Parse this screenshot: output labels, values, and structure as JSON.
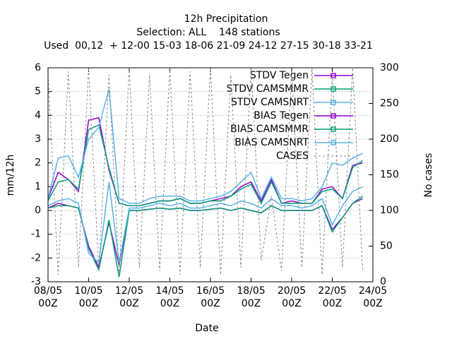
{
  "chart_data": {
    "type": "line",
    "title": "12h Precipitation",
    "subtitle": "Selection: ALL    148 stations",
    "note": "Used  00,12  + 12-00 15-03 18-06 21-09 24-12 27-15 30-18 33-21",
    "xlabel": "Date",
    "ylabel": "mm/12h",
    "y2label": "No cases",
    "x": [
      8.0,
      8.5,
      9.0,
      9.5,
      10.0,
      10.5,
      11.0,
      11.5,
      12.0,
      12.5,
      13.0,
      13.5,
      14.0,
      14.5,
      15.0,
      15.5,
      16.0,
      16.5,
      17.0,
      17.5,
      18.0,
      18.5,
      19.0,
      19.5,
      20.0,
      20.5,
      21.0,
      21.5,
      22.0,
      22.5,
      23.0,
      23.5
    ],
    "xlim": [
      8,
      24
    ],
    "xticks": [
      {
        "value": 8,
        "label": [
          "08/05",
          "00Z"
        ]
      },
      {
        "value": 10,
        "label": [
          "10/05",
          "00Z"
        ]
      },
      {
        "value": 12,
        "label": [
          "12/05",
          "00Z"
        ]
      },
      {
        "value": 14,
        "label": [
          "14/05",
          "00Z"
        ]
      },
      {
        "value": 16,
        "label": [
          "16/05",
          "00Z"
        ]
      },
      {
        "value": 18,
        "label": [
          "18/05",
          "00Z"
        ]
      },
      {
        "value": 20,
        "label": [
          "20/05",
          "00Z"
        ]
      },
      {
        "value": 22,
        "label": [
          "22/05",
          "00Z"
        ]
      },
      {
        "value": 24,
        "label": [
          "24/05",
          "00Z"
        ]
      }
    ],
    "ylim": [
      -3,
      6
    ],
    "yticks": [
      -3,
      -2,
      -1,
      0,
      1,
      2,
      3,
      4,
      5,
      6
    ],
    "y2lim": [
      0,
      300
    ],
    "y2ticks": [
      0,
      50,
      100,
      150,
      200,
      250,
      300
    ],
    "grid": true,
    "legend": "top-right",
    "series": [
      {
        "name": "STDV Tegen",
        "color": "#9400d3",
        "values": [
          0.5,
          1.6,
          1.3,
          0.8,
          3.8,
          3.9,
          1.7,
          0.3,
          0.2,
          0.2,
          0.3,
          0.4,
          0.4,
          0.5,
          0.3,
          0.3,
          0.4,
          0.5,
          0.6,
          1.0,
          1.2,
          0.4,
          1.3,
          0.3,
          0.4,
          0.3,
          0.3,
          0.9,
          1.0,
          0.5,
          1.9,
          2.0
        ]
      },
      {
        "name": "STDV CAMSMMR",
        "color": "#009e73",
        "values": [
          0.4,
          1.2,
          1.3,
          0.9,
          3.4,
          3.6,
          1.8,
          0.3,
          0.2,
          0.2,
          0.3,
          0.4,
          0.4,
          0.5,
          0.3,
          0.3,
          0.4,
          0.4,
          0.6,
          0.9,
          1.1,
          0.3,
          1.2,
          0.3,
          0.3,
          0.3,
          0.3,
          0.8,
          0.9,
          0.5,
          1.8,
          2.1
        ]
      },
      {
        "name": "STDV CAMSNRT",
        "color": "#56b4e9",
        "values": [
          0.5,
          2.2,
          2.3,
          1.4,
          3.0,
          3.5,
          5.1,
          0.5,
          0.3,
          0.3,
          0.5,
          0.6,
          0.6,
          0.6,
          0.4,
          0.4,
          0.5,
          0.6,
          0.8,
          1.2,
          1.6,
          0.5,
          1.4,
          0.5,
          0.5,
          0.4,
          0.5,
          1.0,
          2.0,
          1.9,
          2.2,
          2.4
        ]
      },
      {
        "name": "BIAS Tegen",
        "color": "#9400d3",
        "values": [
          0.1,
          0.3,
          0.2,
          0.1,
          -1.5,
          -2.4,
          -0.5,
          -2.3,
          0.0,
          0.0,
          0.05,
          0.1,
          0.05,
          0.1,
          0.0,
          0.0,
          0.05,
          0.1,
          0.0,
          0.1,
          0.0,
          -0.1,
          0.2,
          0.0,
          0.0,
          0.0,
          0.0,
          0.2,
          -0.8,
          -0.3,
          0.3,
          0.5
        ]
      },
      {
        "name": "BIAS CAMSMMR",
        "color": "#009e73",
        "values": [
          0.1,
          0.2,
          0.2,
          0.1,
          -1.6,
          -2.5,
          -0.4,
          -2.8,
          0.0,
          0.0,
          0.05,
          0.1,
          0.05,
          0.1,
          0.0,
          0.0,
          0.05,
          0.1,
          0.0,
          0.1,
          0.0,
          -0.1,
          0.2,
          0.0,
          0.0,
          0.0,
          0.0,
          0.2,
          -0.9,
          -0.3,
          0.3,
          0.6
        ]
      },
      {
        "name": "BIAS CAMSNRT",
        "color": "#56b4e9",
        "values": [
          0.2,
          0.4,
          0.5,
          0.3,
          -1.8,
          -2.2,
          1.2,
          -2.2,
          0.1,
          0.1,
          0.2,
          0.3,
          0.2,
          0.3,
          0.1,
          0.1,
          0.2,
          0.3,
          0.2,
          0.4,
          0.3,
          0.1,
          0.5,
          0.2,
          0.2,
          0.1,
          0.2,
          0.5,
          -0.6,
          0.2,
          0.8,
          1.0
        ]
      },
      {
        "name": "CASES",
        "color": "#888888",
        "axis": "y2",
        "dashed": true,
        "values": [
          290,
          10,
          295,
          20,
          300,
          15,
          290,
          10,
          300,
          20,
          290,
          15,
          300,
          10,
          295,
          20,
          300,
          10,
          290,
          20,
          300,
          30,
          120,
          15,
          295,
          20,
          300,
          10,
          290,
          20,
          300,
          15
        ]
      }
    ]
  }
}
